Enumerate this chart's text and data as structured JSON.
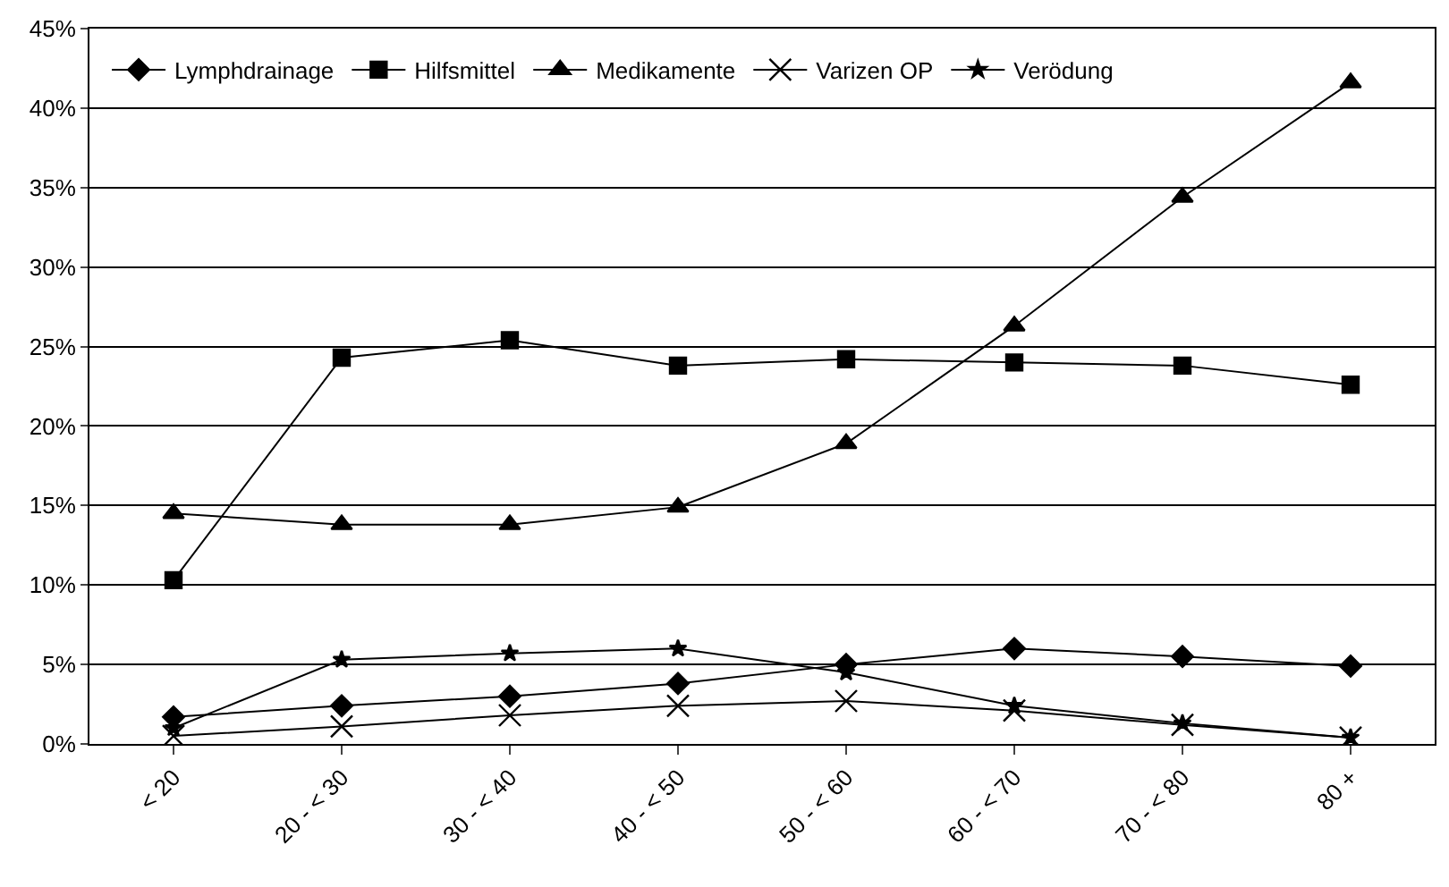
{
  "chart_data": {
    "type": "line",
    "categories": [
      "< 20",
      "20 - < 30",
      "30 - < 40",
      "40 - < 50",
      "50 - < 60",
      "60 - < 70",
      "70 - < 80",
      "80 +"
    ],
    "series": [
      {
        "name": "Lymphdrainage",
        "color": "#000000",
        "marker": "diamond",
        "values": [
          1.7,
          2.4,
          3.0,
          3.8,
          5.0,
          6.0,
          5.5,
          4.9
        ]
      },
      {
        "name": "Hilfsmittel",
        "color": "#000000",
        "marker": "square",
        "values": [
          10.3,
          24.3,
          25.4,
          23.8,
          24.2,
          24.0,
          23.8,
          22.6
        ]
      },
      {
        "name": "Medikamente",
        "color": "#000000",
        "marker": "triangle",
        "values": [
          14.5,
          13.8,
          13.8,
          14.9,
          18.9,
          26.3,
          34.4,
          41.6
        ]
      },
      {
        "name": "Varizen OP",
        "color": "#000000",
        "marker": "cross",
        "values": [
          0.5,
          1.1,
          1.8,
          2.4,
          2.7,
          2.1,
          1.2,
          0.4
        ]
      },
      {
        "name": "Verödung",
        "color": "#000000",
        "marker": "star",
        "values": [
          1.0,
          5.3,
          5.7,
          6.0,
          4.5,
          2.4,
          1.3,
          0.4
        ]
      }
    ],
    "ylim": [
      0,
      45
    ],
    "yticks": [
      {
        "value": 0,
        "label": "0%"
      },
      {
        "value": 5,
        "label": "5%"
      },
      {
        "value": 10,
        "label": "10%"
      },
      {
        "value": 15,
        "label": "15%"
      },
      {
        "value": 20,
        "label": "20%"
      },
      {
        "value": 25,
        "label": "25%"
      },
      {
        "value": 30,
        "label": "30%"
      },
      {
        "value": 35,
        "label": "35%"
      },
      {
        "value": 40,
        "label": "40%"
      },
      {
        "value": 45,
        "label": "45%"
      }
    ],
    "grid": "y",
    "legend": "top left",
    "line_style": "solid"
  }
}
